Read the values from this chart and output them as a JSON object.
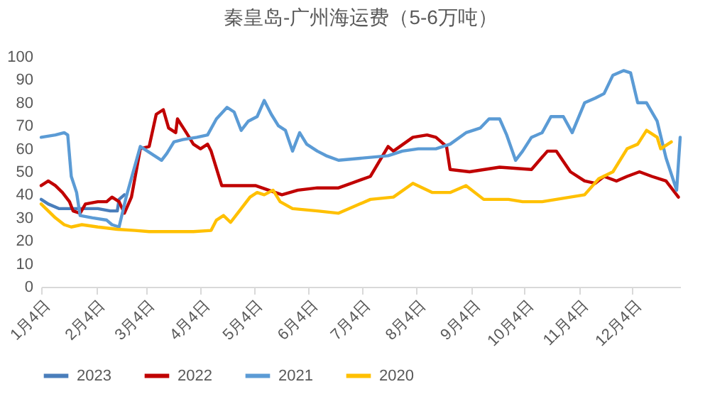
{
  "chart_data": {
    "type": "line",
    "title": "秦皇岛-广州海运费（5-6万吨）",
    "xlim": [
      "--01-04",
      "--12-31"
    ],
    "xticks": [
      {
        "value": "--01-04",
        "label": "1月4日"
      },
      {
        "value": "--02-04",
        "label": "2月4日"
      },
      {
        "value": "--03-04",
        "label": "3月4日"
      },
      {
        "value": "--04-04",
        "label": "4月4日"
      },
      {
        "value": "--05-04",
        "label": "5月4日"
      },
      {
        "value": "--06-04",
        "label": "6月4日"
      },
      {
        "value": "--07-04",
        "label": "7月4日"
      },
      {
        "value": "--08-04",
        "label": "8月4日"
      },
      {
        "value": "--09-04",
        "label": "9月4日"
      },
      {
        "value": "--10-04",
        "label": "10月4日"
      },
      {
        "value": "--11-04",
        "label": "11月4日"
      },
      {
        "value": "--12-04",
        "label": "12月4日"
      }
    ],
    "ylim": [
      0,
      100
    ],
    "yticks": [
      0,
      10,
      20,
      30,
      40,
      50,
      60,
      70,
      80,
      90,
      100
    ],
    "legend": "bottom",
    "series": [
      {
        "name": "2023",
        "color": "#4a7ebb",
        "x": [
          "--01-04",
          "--01-08",
          "--01-14",
          "--01-21",
          "--01-29",
          "--02-05",
          "--02-12",
          "--02-16",
          "--02-17",
          "--02-20"
        ],
        "values": [
          38,
          36,
          34,
          34,
          34,
          34,
          33,
          33,
          38,
          40
        ]
      },
      {
        "name": "2022",
        "color": "#c00000",
        "x": [
          "--01-04",
          "--01-08",
          "--01-12",
          "--01-16",
          "--01-20",
          "--01-22",
          "--01-26",
          "--01-29",
          "--02-05",
          "--02-10",
          "--02-13",
          "--02-17",
          "--02-20",
          "--02-24",
          "--03-01",
          "--03-06",
          "--03-10",
          "--03-14",
          "--03-17",
          "--03-21",
          "--03-22",
          "--03-27",
          "--03-31",
          "--04-04",
          "--04-08",
          "--04-10",
          "--04-16",
          "--05-05",
          "--05-20",
          "--05-29",
          "--06-09",
          "--06-21",
          "--07-09",
          "--07-19",
          "--07-22",
          "--08-02",
          "--08-10",
          "--08-15",
          "--08-21",
          "--08-23",
          "--09-03",
          "--09-20",
          "--10-08",
          "--10-17",
          "--10-22",
          "--10-30",
          "--11-07",
          "--11-13",
          "--11-18",
          "--11-25",
          "--12-01",
          "--12-08",
          "--12-15",
          "--12-23",
          "--12-30"
        ],
        "values": [
          44,
          46,
          44,
          41,
          37,
          33,
          32,
          36,
          37,
          37,
          39,
          37,
          32,
          39,
          60,
          61,
          75,
          77,
          69,
          67,
          73,
          67,
          62,
          60,
          62,
          59,
          44,
          44,
          40,
          42,
          43,
          43,
          48,
          61,
          59,
          65,
          66,
          65,
          61,
          51,
          50,
          52,
          51,
          59,
          59,
          50,
          46,
          45,
          48,
          46,
          48,
          50,
          48,
          46,
          39
        ]
      },
      {
        "name": "2021",
        "color": "#5b9bd5",
        "x": [
          "--01-04",
          "--01-12",
          "--01-17",
          "--01-19",
          "--01-21",
          "--01-24",
          "--01-26",
          "--02-02",
          "--02-10",
          "--02-13",
          "--02-17",
          "--02-21",
          "--03-01",
          "--03-05",
          "--03-09",
          "--03-13",
          "--03-16",
          "--03-20",
          "--03-25",
          "--04-02",
          "--04-08",
          "--04-13",
          "--04-19",
          "--04-23",
          "--04-27",
          "--05-01",
          "--05-06",
          "--05-10",
          "--05-14",
          "--05-18",
          "--05-22",
          "--05-26",
          "--05-30",
          "--06-03",
          "--06-09",
          "--06-14",
          "--06-21",
          "--07-19",
          "--07-27",
          "--08-05",
          "--08-15",
          "--08-23",
          "--09-01",
          "--09-09",
          "--09-14",
          "--09-20",
          "--09-24",
          "--09-29",
          "--10-03",
          "--10-08",
          "--10-14",
          "--10-19",
          "--10-26",
          "--10-31",
          "--11-07",
          "--11-13",
          "--11-18",
          "--11-23",
          "--11-29",
          "--12-03",
          "--12-07",
          "--12-12",
          "--12-18",
          "--12-23",
          "--12-29",
          "--12-31"
        ],
        "values": [
          65,
          66,
          67,
          66,
          48,
          41,
          31,
          30,
          29,
          27,
          26,
          39,
          61,
          59,
          57,
          55,
          58,
          63,
          64,
          65,
          66,
          73,
          78,
          76,
          68,
          72,
          74,
          81,
          75,
          70,
          68,
          59,
          67,
          62,
          59,
          57,
          55,
          57,
          59,
          60,
          60,
          62,
          67,
          69,
          73,
          73,
          66,
          55,
          59,
          65,
          67,
          74,
          74,
          67,
          80,
          82,
          84,
          92,
          94,
          93,
          80,
          80,
          72,
          56,
          42,
          65
        ]
      },
      {
        "name": "2020",
        "color": "#ffc000",
        "x": [
          "--01-04",
          "--01-08",
          "--01-12",
          "--01-17",
          "--01-21",
          "--01-27",
          "--02-05",
          "--02-16",
          "--02-26",
          "--03-06",
          "--03-20",
          "--03-31",
          "--04-10",
          "--04-13",
          "--04-17",
          "--04-21",
          "--04-26",
          "--05-02",
          "--05-06",
          "--05-10",
          "--05-15",
          "--05-19",
          "--05-26",
          "--06-09",
          "--06-21",
          "--07-09",
          "--07-22",
          "--08-02",
          "--08-13",
          "--08-23",
          "--09-01",
          "--09-11",
          "--09-25",
          "--10-03",
          "--10-14",
          "--10-22",
          "--10-30",
          "--11-07",
          "--11-15",
          "--11-23",
          "--12-01",
          "--12-07",
          "--12-12",
          "--12-18",
          "--12-20",
          "--12-26"
        ],
        "values": [
          36,
          33,
          30,
          27,
          26,
          27,
          26,
          25,
          24.5,
          24,
          24,
          24,
          24.5,
          29,
          31,
          28,
          33,
          39,
          41,
          40,
          42,
          37,
          34,
          33,
          32,
          38,
          39,
          45,
          41,
          41,
          44,
          38,
          38,
          37,
          37,
          38,
          39,
          40,
          47,
          50,
          60,
          62,
          68,
          65,
          60,
          63
        ]
      }
    ]
  }
}
